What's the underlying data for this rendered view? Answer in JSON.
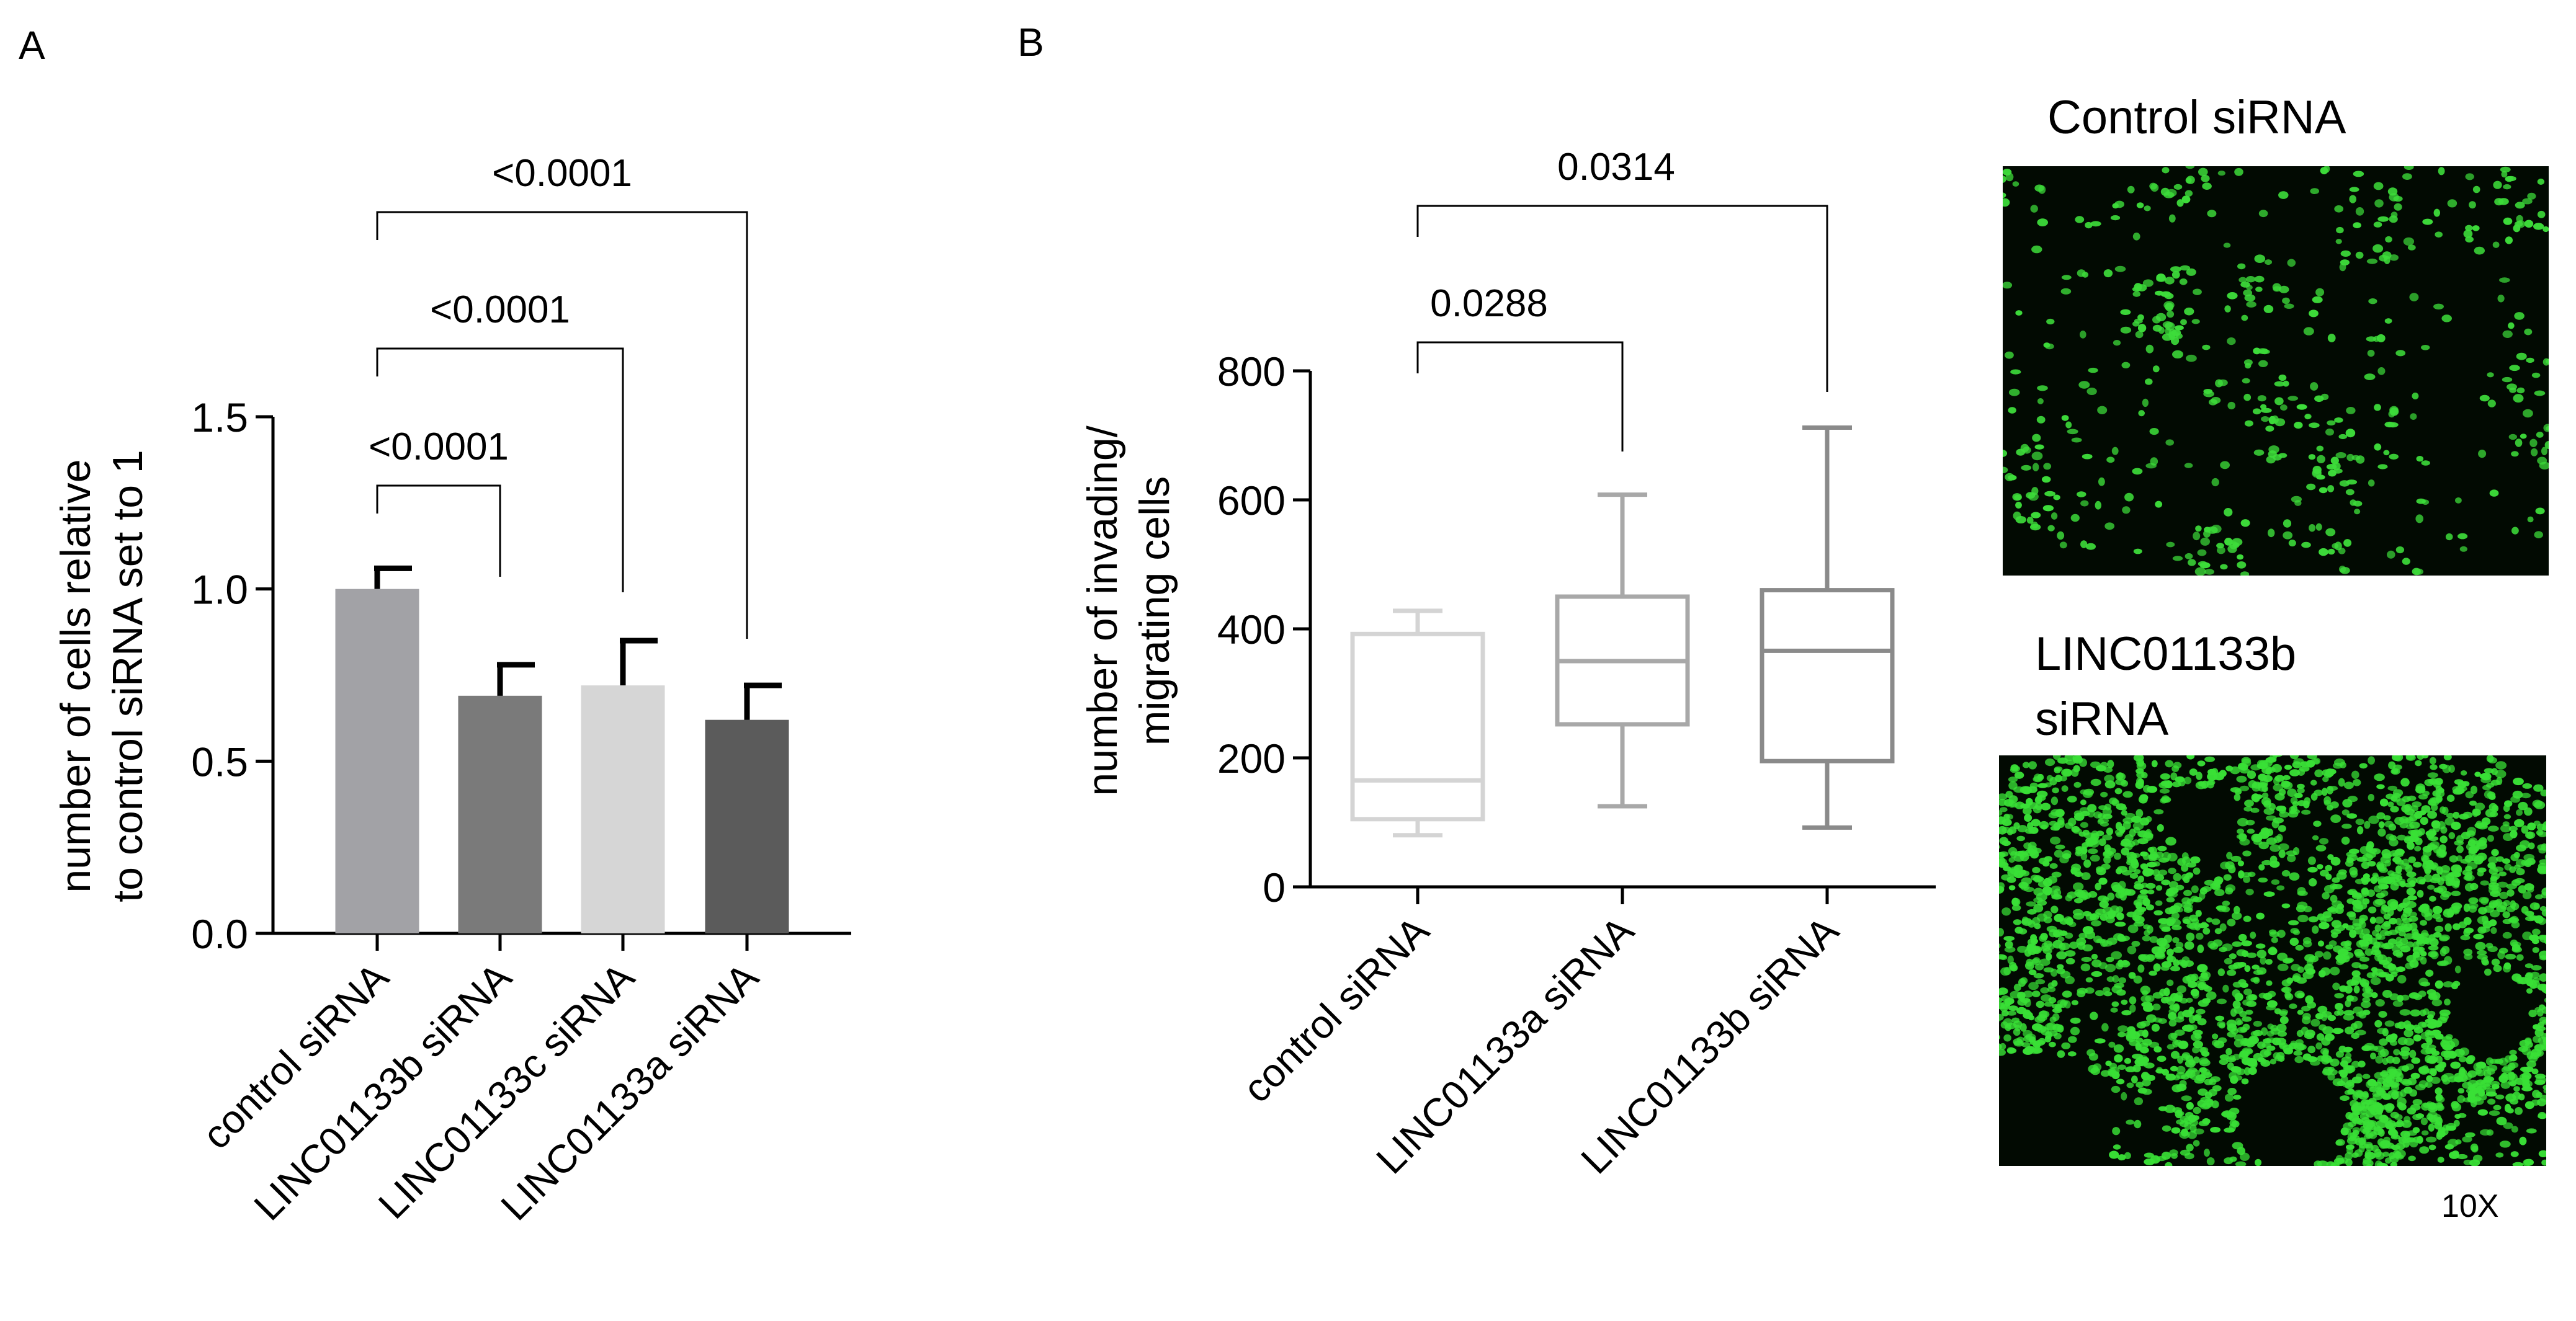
{
  "panel_a": {
    "label": "A"
  },
  "panel_b": {
    "label": "B"
  },
  "chart_data": [
    {
      "type": "bar",
      "panel": "A",
      "ylabel": "number of cells relative to control siRNA set to 1",
      "ylabel_lines": [
        "number of cells relative",
        "to control siRNA set to 1"
      ],
      "ylim": [
        0,
        1.5
      ],
      "yticks": [
        0.0,
        0.5,
        1.0,
        1.5
      ],
      "ytick_labels": [
        "0.0",
        "0.5",
        "1.0",
        "1.5"
      ],
      "categories": [
        "control siRNA",
        "LINC01133b siRNA",
        "LINC01133c siRNA",
        "LINC01133a siRNA"
      ],
      "values": [
        1.0,
        0.69,
        0.72,
        0.62
      ],
      "errors": [
        0.06,
        0.09,
        0.13,
        0.1
      ],
      "colors": [
        "#a2a2a6",
        "#7a7a7a",
        "#d6d6d6",
        "#5b5b5b"
      ],
      "comparisons": [
        {
          "from": 0,
          "to": 1,
          "label": "<0.0001"
        },
        {
          "from": 0,
          "to": 2,
          "label": "<0.0001"
        },
        {
          "from": 0,
          "to": 3,
          "label": "<0.0001"
        }
      ]
    },
    {
      "type": "box",
      "panel": "B",
      "ylabel": "number of invading/ migrating cells",
      "ylabel_lines": [
        "number of invading/",
        "migrating cells"
      ],
      "ylim": [
        0,
        800
      ],
      "yticks": [
        0,
        200,
        400,
        600,
        800
      ],
      "ytick_labels": [
        "0",
        "200",
        "400",
        "600",
        "800"
      ],
      "categories": [
        "control siRNA",
        "LINC01133a siRNA",
        "LINC01133b siRNA"
      ],
      "boxes": [
        {
          "min": 80,
          "q1": 105,
          "median": 165,
          "q3": 392,
          "max": 428,
          "color": "#d4d4d4"
        },
        {
          "min": 125,
          "q1": 252,
          "median": 350,
          "q3": 450,
          "max": 608,
          "color": "#a8a8a8"
        },
        {
          "min": 92,
          "q1": 195,
          "median": 366,
          "q3": 460,
          "max": 712,
          "color": "#8a8a8a"
        }
      ],
      "comparisons": [
        {
          "from": 0,
          "to": 1,
          "label": "0.0288"
        },
        {
          "from": 0,
          "to": 2,
          "label": "0.0314"
        }
      ]
    }
  ],
  "images": {
    "control": {
      "title": "Control siRNA",
      "density": "sparse",
      "color": "#3ddc3a"
    },
    "linc": {
      "title_lines": [
        "LINC01133b",
        "siRNA"
      ],
      "density": "dense",
      "color": "#39e036"
    },
    "magnification": "10X"
  }
}
